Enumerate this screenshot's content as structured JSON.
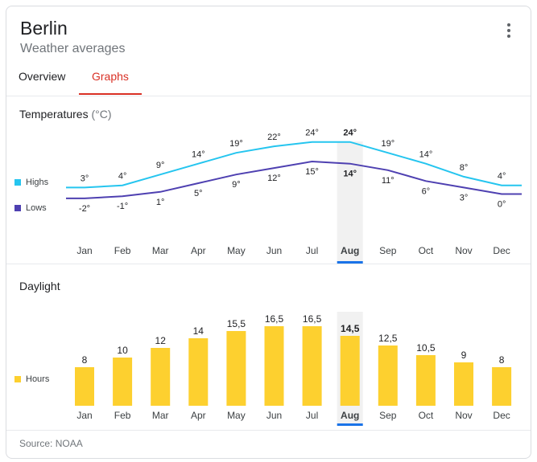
{
  "header": {
    "city": "Berlin",
    "subtitle": "Weather averages"
  },
  "tabs": [
    {
      "label": "Overview",
      "active": false
    },
    {
      "label": "Graphs",
      "active": true
    }
  ],
  "colors": {
    "highs": "#25c5ef",
    "lows": "#4e40b1",
    "bars": "#fdd02f",
    "active_tab": "#d93025",
    "selected_bar": "#1a73e8"
  },
  "temperatures": {
    "title": "Temperatures",
    "unit": "(°C)",
    "legend": [
      "Highs",
      "Lows"
    ]
  },
  "daylight": {
    "title": "Daylight",
    "legend": [
      "Hours"
    ]
  },
  "selected_month": "Aug",
  "source": "Source: NOAA",
  "chart_data": [
    {
      "type": "line",
      "title": "Temperatures (°C)",
      "categories": [
        "Jan",
        "Feb",
        "Mar",
        "Apr",
        "May",
        "Jun",
        "Jul",
        "Aug",
        "Sep",
        "Oct",
        "Nov",
        "Dec"
      ],
      "series": [
        {
          "name": "Highs",
          "values": [
            3,
            4,
            9,
            14,
            19,
            22,
            24,
            24,
            19,
            14,
            8,
            4
          ],
          "labels": [
            "3°",
            "4°",
            "9°",
            "14°",
            "19°",
            "22°",
            "24°",
            "24°",
            "19°",
            "14°",
            "8°",
            "4°"
          ]
        },
        {
          "name": "Lows",
          "values": [
            -2,
            -1,
            1,
            5,
            9,
            12,
            15,
            14,
            11,
            6,
            3,
            0
          ],
          "labels": [
            "-2°",
            "-1°",
            "1°",
            "5°",
            "9°",
            "12°",
            "15°",
            "14°",
            "11°",
            "6°",
            "3°",
            "0°"
          ]
        }
      ]
    },
    {
      "type": "bar",
      "title": "Daylight",
      "categories": [
        "Jan",
        "Feb",
        "Mar",
        "Apr",
        "May",
        "Jun",
        "Jul",
        "Aug",
        "Sep",
        "Oct",
        "Nov",
        "Dec"
      ],
      "series": [
        {
          "name": "Hours",
          "values": [
            8,
            10,
            12,
            14,
            15.5,
            16.5,
            16.5,
            14.5,
            12.5,
            10.5,
            9,
            8
          ],
          "labels": [
            "8",
            "10",
            "12",
            "14",
            "15,5",
            "16,5",
            "16,5",
            "14,5",
            "12,5",
            "10,5",
            "9",
            "8"
          ]
        }
      ]
    }
  ]
}
